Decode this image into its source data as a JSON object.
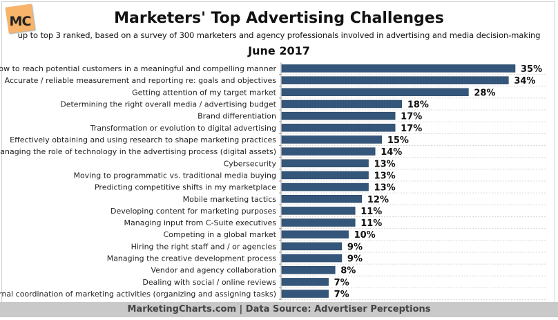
{
  "logo_text": "MC",
  "chart_data": {
    "type": "bar",
    "orientation": "horizontal",
    "title": "Marketers' Top Advertising Challenges",
    "subtitle": "up to top 3 ranked, based on a survey of 300 marketers and agency professionals involved in advertising and media decision-making",
    "date_label": "June 2017",
    "categories": [
      "How to reach potential customers in a meaningful and compelling manner",
      "Accurate / reliable measurement and reporting re: goals and objectives",
      "Getting attention of my target market",
      "Determining the right overall media / advertising budget",
      "Brand differentiation",
      "Transformation or evolution to digital advertising",
      "Effectively obtaining and using research to shape marketing practices",
      "Managing the role of technology in the advertising process (digital assets)",
      "Cybersecurity",
      "Moving to programmatic vs. traditional media buying",
      "Predicting competitive shifts in my marketplace",
      "Mobile marketing tactics",
      "Developing content for marketing purposes",
      "Managing input from C-Suite executives",
      "Competing in a global market",
      "Hiring the right staff and / or agencies",
      "Managing the creative development process",
      "Vendor and agency collaboration",
      "Dealing with social / online reviews",
      "Internal coordination of marketing activities (organizing and assigning tasks)"
    ],
    "values": [
      35,
      34,
      28,
      18,
      17,
      17,
      15,
      14,
      13,
      13,
      13,
      12,
      11,
      11,
      10,
      9,
      9,
      8,
      7,
      7
    ],
    "value_suffix": "%",
    "xlim": [
      0,
      35
    ],
    "grid": "horizontal dotted",
    "bar_color": "#34567a"
  },
  "footer": "MarketingCharts.com | Data Source: Advertiser Perceptions"
}
